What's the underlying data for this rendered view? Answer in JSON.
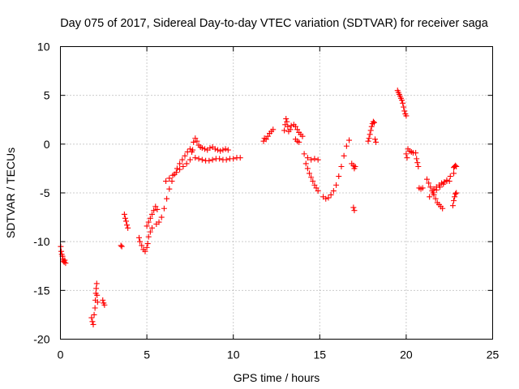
{
  "chart_data": {
    "type": "scatter",
    "title": "Day 075 of 2017, Sidereal Day-to-day VTEC variation (SDTVAR) for receiver saga",
    "xlabel": "GPS time / hours",
    "ylabel": "SDTVAR / TECUs",
    "xlim": [
      0,
      25
    ],
    "ylim": [
      -20,
      10
    ],
    "xticks": [
      0,
      5,
      10,
      15,
      20,
      25
    ],
    "yticks": [
      -20,
      -15,
      -10,
      -5,
      0,
      5,
      10
    ],
    "xtick_labels": [
      "0",
      "5",
      "10",
      "15",
      "20",
      "25"
    ],
    "ytick_labels": [
      "-20",
      "-15",
      "-10",
      "-5",
      "0",
      "5",
      "10"
    ],
    "grid": true,
    "marker": "+",
    "color": "#ff0000",
    "series": [
      {
        "name": "SDTVAR",
        "x": [
          0.02,
          0.05,
          0.08,
          0.12,
          0.15,
          0.18,
          0.22,
          0.25,
          0.3,
          1.8,
          1.85,
          1.9,
          1.95,
          2.0,
          2.02,
          2.05,
          2.07,
          2.1,
          2.12,
          2.15,
          2.45,
          2.5,
          2.55,
          3.5,
          3.55,
          3.7,
          3.75,
          3.8,
          3.85,
          3.9,
          4.55,
          4.6,
          4.7,
          4.8,
          4.9,
          5.0,
          5.05,
          5.1,
          5.2,
          5.3,
          5.0,
          5.1,
          5.2,
          5.3,
          5.4,
          5.5,
          5.6,
          5.55,
          5.7,
          5.85,
          6.0,
          6.15,
          6.3,
          6.45,
          6.6,
          6.75,
          6.9,
          7.05,
          7.2,
          7.35,
          7.5,
          7.65,
          6.1,
          6.3,
          6.5,
          6.7,
          6.9,
          7.1,
          7.3,
          7.5,
          7.6,
          7.7,
          7.8,
          7.9,
          8.0,
          8.1,
          8.2,
          8.35,
          8.5,
          8.65,
          8.8,
          8.95,
          9.1,
          9.25,
          9.4,
          9.55,
          9.7,
          7.8,
          8.0,
          8.2,
          8.4,
          8.6,
          8.8,
          9.0,
          9.2,
          9.4,
          9.6,
          9.8,
          10.0,
          10.2,
          10.4,
          11.75,
          11.8,
          11.9,
          12.0,
          12.1,
          12.2,
          12.3,
          12.95,
          13.0,
          13.05,
          13.1,
          13.15,
          13.2,
          13.3,
          13.35,
          13.5,
          13.6,
          13.7,
          13.8,
          13.9,
          14.0,
          13.6,
          13.7,
          13.8,
          14.1,
          14.2,
          14.3,
          14.4,
          14.5,
          14.6,
          14.7,
          14.8,
          14.9,
          14.3,
          14.5,
          14.7,
          14.9,
          15.2,
          15.35,
          15.5,
          15.65,
          15.8,
          15.95,
          16.1,
          16.25,
          16.4,
          16.55,
          16.7,
          16.85,
          16.95,
          17.0,
          17.05,
          16.95,
          17.0,
          17.8,
          17.85,
          17.9,
          17.95,
          18.0,
          18.05,
          18.1,
          18.15,
          18.2,
          18.25,
          19.5,
          19.55,
          19.6,
          19.65,
          19.7,
          19.75,
          19.8,
          19.85,
          19.9,
          19.95,
          20.0,
          20.0,
          20.05,
          20.1,
          20.2,
          20.3,
          20.4,
          20.55,
          20.6,
          20.65,
          20.7,
          20.75,
          20.85,
          20.95,
          21.2,
          21.3,
          21.4,
          21.5,
          21.6,
          21.7,
          21.8,
          21.9,
          22.0,
          22.1,
          21.35,
          21.55,
          21.75,
          21.95,
          22.15,
          22.35,
          22.55,
          22.75,
          21.6,
          21.75,
          21.9,
          22.05,
          22.2,
          22.35,
          22.5,
          22.75,
          22.8,
          22.85,
          22.9,
          22.7,
          22.75,
          22.8,
          22.85,
          22.9
        ],
        "y": [
          -10.5,
          -11.0,
          -11.3,
          -11.5,
          -11.8,
          -12.0,
          -12.1,
          -11.9,
          -12.2,
          -17.8,
          -18.2,
          -18.5,
          -17.5,
          -16.8,
          -16.0,
          -15.3,
          -14.8,
          -14.3,
          -15.5,
          -16.2,
          -16.0,
          -16.3,
          -16.5,
          -10.4,
          -10.5,
          -7.2,
          -7.6,
          -7.9,
          -8.3,
          -8.6,
          -9.6,
          -10.0,
          -10.4,
          -10.8,
          -11.0,
          -10.6,
          -10.2,
          -9.5,
          -9.0,
          -8.6,
          -8.4,
          -8.0,
          -7.6,
          -7.2,
          -6.8,
          -6.4,
          -6.7,
          -8.2,
          -8.0,
          -7.5,
          -6.6,
          -5.6,
          -4.6,
          -3.8,
          -3.1,
          -2.5,
          -2.0,
          -1.6,
          -1.2,
          -0.8,
          -0.5,
          -0.6,
          -3.8,
          -3.5,
          -3.2,
          -2.9,
          -2.6,
          -2.3,
          -2.0,
          -1.6,
          -0.8,
          0.2,
          0.6,
          0.3,
          -0.1,
          -0.3,
          -0.4,
          -0.5,
          -0.6,
          -0.4,
          -0.3,
          -0.5,
          -0.6,
          -0.7,
          -0.6,
          -0.5,
          -0.6,
          -1.4,
          -1.5,
          -1.6,
          -1.7,
          -1.7,
          -1.6,
          -1.5,
          -1.5,
          -1.6,
          -1.6,
          -1.5,
          -1.5,
          -1.4,
          -1.4,
          0.3,
          0.6,
          0.5,
          0.8,
          1.1,
          1.3,
          1.5,
          1.4,
          2.0,
          2.6,
          2.3,
          1.8,
          1.3,
          1.5,
          1.9,
          2.0,
          1.8,
          1.5,
          1.2,
          1.0,
          0.8,
          0.5,
          0.3,
          0.2,
          -1.0,
          -2.0,
          -2.5,
          -3.0,
          -3.4,
          -3.8,
          -4.2,
          -4.5,
          -4.8,
          -1.4,
          -1.6,
          -1.5,
          -1.6,
          -5.4,
          -5.6,
          -5.5,
          -5.2,
          -4.8,
          -4.2,
          -3.3,
          -2.3,
          -1.2,
          -0.2,
          0.4,
          -2.0,
          -2.2,
          -2.5,
          -2.3,
          -6.5,
          -6.8,
          0.3,
          0.6,
          1.0,
          1.4,
          1.8,
          2.1,
          2.3,
          2.2,
          0.5,
          0.2,
          5.5,
          5.3,
          5.1,
          4.9,
          4.7,
          4.5,
          4.2,
          3.8,
          3.4,
          3.1,
          2.9,
          -1.0,
          -1.4,
          -0.5,
          -0.7,
          -0.8,
          -0.9,
          -0.9,
          -1.5,
          -1.9,
          -2.3,
          -4.5,
          -4.6,
          -4.5,
          -3.6,
          -4.0,
          -4.4,
          -4.8,
          -5.2,
          -5.6,
          -6.0,
          -6.2,
          -6.4,
          -6.6,
          -5.4,
          -5.0,
          -4.7,
          -4.4,
          -4.1,
          -3.7,
          -3.3,
          -3.0,
          -4.6,
          -4.4,
          -4.2,
          -4.0,
          -3.9,
          -3.8,
          -3.8,
          -2.4,
          -2.3,
          -2.2,
          -2.3,
          -6.3,
          -5.8,
          -5.4,
          -5.1,
          -5.0
        ]
      }
    ]
  }
}
